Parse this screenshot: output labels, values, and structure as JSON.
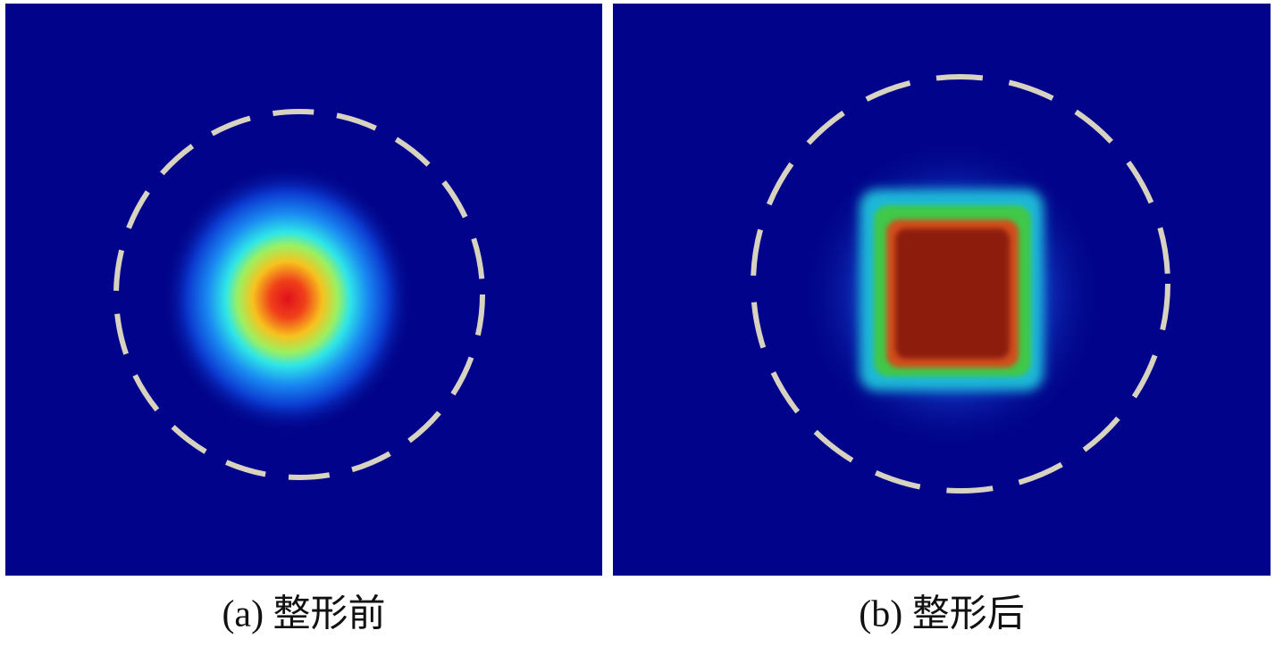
{
  "panels": [
    {
      "caption": "(a) 整形前"
    },
    {
      "caption": "(b) 整形后"
    }
  ]
}
